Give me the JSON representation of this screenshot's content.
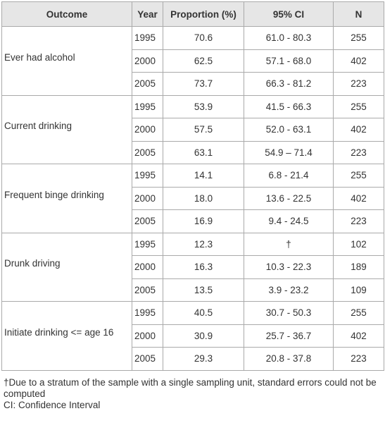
{
  "table": {
    "header": [
      "Outcome",
      "Year",
      "Proportion (%)",
      "95% CI",
      "N"
    ],
    "groups": [
      {
        "outcome": "Ever had alcohol",
        "rows": [
          [
            "1995",
            "70.6",
            "61.0 - 80.3",
            "255"
          ],
          [
            "2000",
            "62.5",
            "57.1 - 68.0",
            "402"
          ],
          [
            "2005",
            "73.7",
            "66.3 - 81.2",
            "223"
          ]
        ]
      },
      {
        "outcome": "Current drinking",
        "rows": [
          [
            "1995",
            "53.9",
            "41.5 - 66.3",
            "255"
          ],
          [
            "2000",
            "57.5",
            "52.0 - 63.1",
            "402"
          ],
          [
            "2005",
            "63.1",
            "54.9 – 71.4",
            "223"
          ]
        ]
      },
      {
        "outcome": "Frequent binge drinking",
        "rows": [
          [
            "1995",
            "14.1",
            "6.8 - 21.4",
            "255"
          ],
          [
            "2000",
            "18.0",
            "13.6 - 22.5",
            "402"
          ],
          [
            "2005",
            "16.9",
            "9.4 - 24.5",
            "223"
          ]
        ]
      },
      {
        "outcome": "Drunk driving",
        "rows": [
          [
            "1995",
            "12.3",
            "†",
            "102"
          ],
          [
            "2000",
            "16.3",
            "10.3 - 22.3",
            "189"
          ],
          [
            "2005",
            "13.5",
            "3.9 - 23.2",
            "109"
          ]
        ]
      },
      {
        "outcome": "Initiate drinking <= age 16",
        "rows": [
          [
            "1995",
            "40.5",
            "30.7 - 50.3",
            "255"
          ],
          [
            "2000",
            "30.9",
            "25.7 - 36.7",
            "402"
          ],
          [
            "2005",
            "29.3",
            "20.8 - 37.8",
            "223"
          ]
        ]
      }
    ]
  },
  "footnotes": [
    "†Due to a stratum of the sample with a single sampling unit, standard errors could not be computed",
    "CI: Confidence Interval"
  ]
}
